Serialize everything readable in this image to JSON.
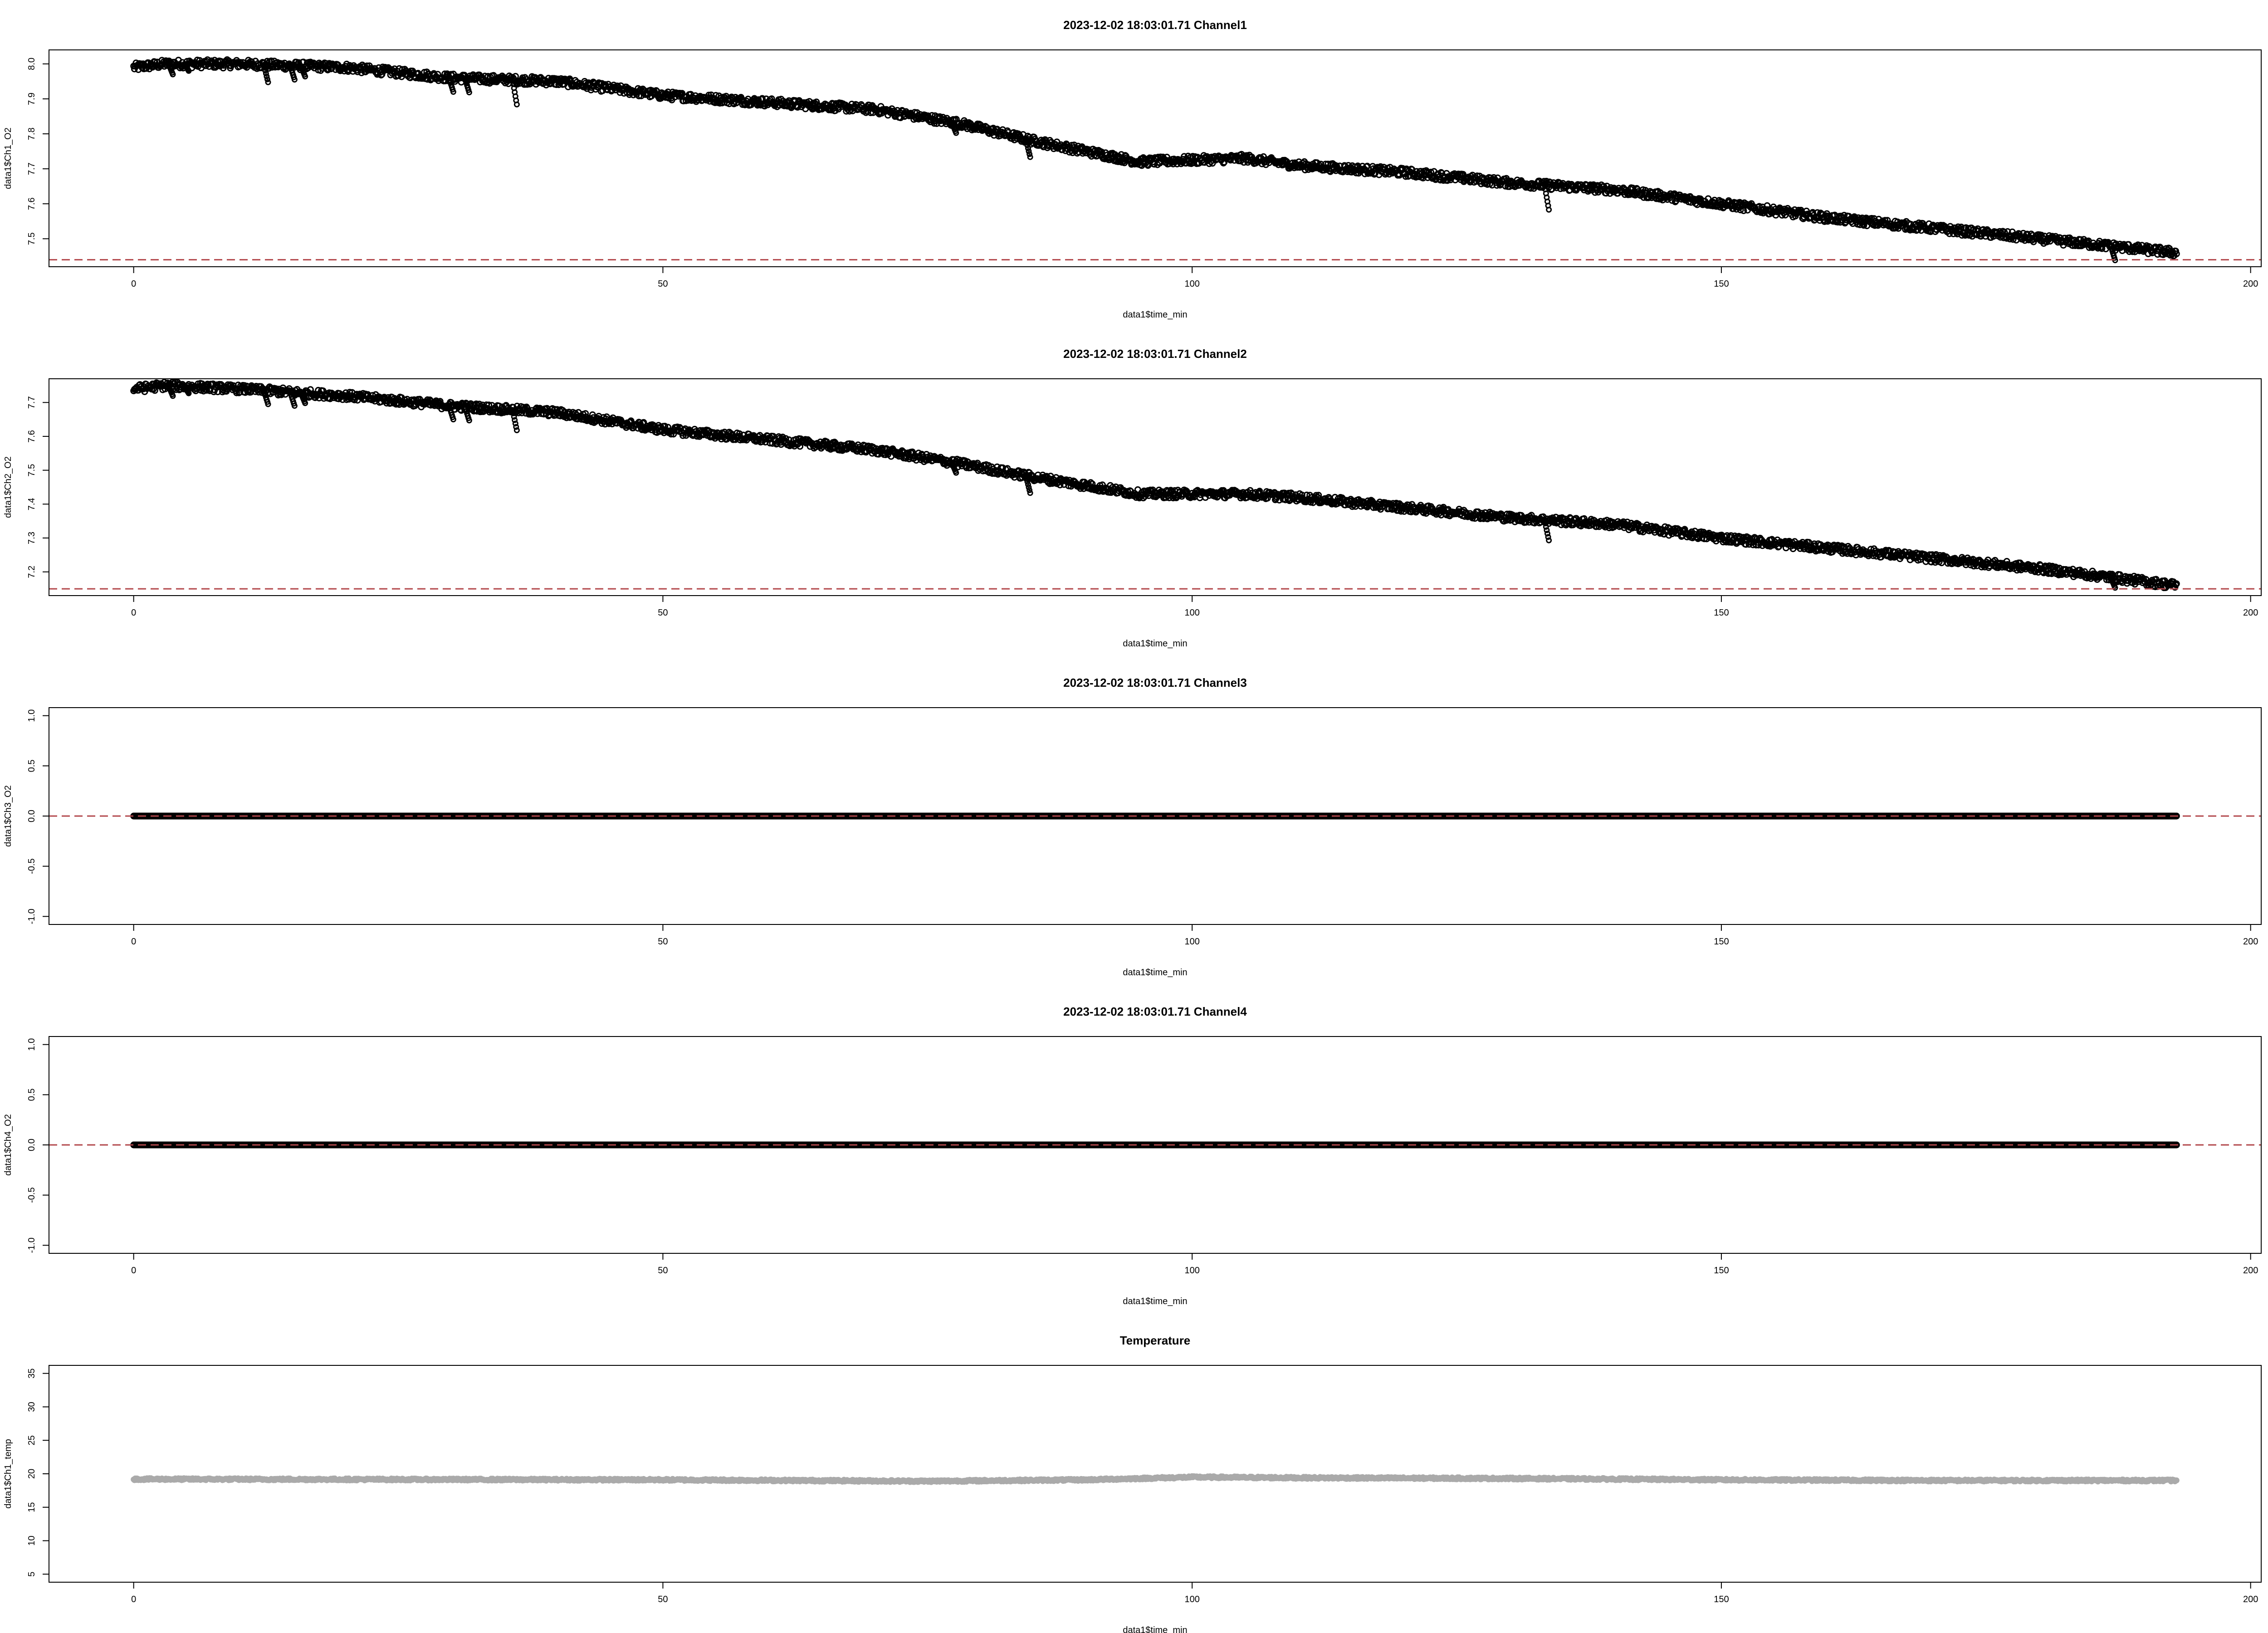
{
  "chart_data": [
    {
      "type": "scatter",
      "title": "2023-12-02 18:03:01.71 Channel1",
      "xlabel": "data1$time_min",
      "ylabel": "data1$Ch1_O2",
      "xlim": [
        -8,
        201
      ],
      "ylim": [
        7.42,
        8.04
      ],
      "xticks": [
        0,
        50,
        100,
        150,
        200
      ],
      "yticks": [
        7.5,
        7.6,
        7.7,
        7.8,
        7.9,
        8.0
      ],
      "ytick_labels": [
        "7.5",
        "7.6",
        "7.7",
        "7.8",
        "7.9",
        "8.0"
      ],
      "series_color": "#000000",
      "hline": {
        "y": 7.44,
        "color": "#b2474b",
        "style": "dashed"
      },
      "trend": {
        "x": [
          0,
          3,
          10,
          20,
          30,
          40,
          50,
          60,
          70,
          78,
          85,
          95,
          105,
          110,
          120,
          130,
          135,
          140,
          150,
          160,
          170,
          180,
          193
        ],
        "y": [
          7.99,
          8.0,
          8.0,
          7.99,
          7.96,
          7.95,
          7.91,
          7.89,
          7.87,
          7.83,
          7.78,
          7.72,
          7.73,
          7.71,
          7.69,
          7.66,
          7.65,
          7.64,
          7.6,
          7.56,
          7.53,
          7.5,
          7.46
        ]
      },
      "spread": 0.012,
      "dips": [
        {
          "x": 3.5,
          "d": 0.03
        },
        {
          "x": 5,
          "d": 0.02
        },
        {
          "x": 12.5,
          "d": 0.05
        },
        {
          "x": 15,
          "d": 0.04
        },
        {
          "x": 16,
          "d": 0.03
        },
        {
          "x": 30,
          "d": 0.04
        },
        {
          "x": 31.5,
          "d": 0.04
        },
        {
          "x": 36,
          "d": 0.07
        },
        {
          "x": 77.5,
          "d": 0.03
        },
        {
          "x": 84.5,
          "d": 0.05
        },
        {
          "x": 133.5,
          "d": 0.07
        },
        {
          "x": 187,
          "d": 0.04
        }
      ]
    },
    {
      "type": "scatter",
      "title": "2023-12-02 18:03:01.71 Channel2",
      "xlabel": "data1$time_min",
      "ylabel": "data1$Ch2_O2",
      "xlim": [
        -8,
        201
      ],
      "ylim": [
        7.13,
        7.77
      ],
      "xticks": [
        0,
        50,
        100,
        150,
        200
      ],
      "yticks": [
        7.2,
        7.3,
        7.4,
        7.5,
        7.6,
        7.7
      ],
      "ytick_labels": [
        "7.2",
        "7.3",
        "7.4",
        "7.5",
        "7.6",
        "7.7"
      ],
      "series_color": "#000000",
      "hline": {
        "y": 7.15,
        "color": "#b2474b",
        "style": "dashed"
      },
      "trend": {
        "x": [
          0,
          3,
          10,
          20,
          30,
          40,
          50,
          60,
          70,
          78,
          85,
          95,
          105,
          110,
          120,
          130,
          135,
          140,
          150,
          160,
          170,
          180,
          193
        ],
        "y": [
          7.74,
          7.75,
          7.74,
          7.72,
          7.69,
          7.67,
          7.62,
          7.59,
          7.56,
          7.52,
          7.48,
          7.43,
          7.43,
          7.42,
          7.39,
          7.36,
          7.35,
          7.34,
          7.3,
          7.27,
          7.24,
          7.21,
          7.16
        ]
      },
      "spread": 0.012,
      "dips": [
        {
          "x": 3.5,
          "d": 0.03
        },
        {
          "x": 5,
          "d": 0.02
        },
        {
          "x": 12.5,
          "d": 0.04
        },
        {
          "x": 15,
          "d": 0.04
        },
        {
          "x": 16,
          "d": 0.03
        },
        {
          "x": 30,
          "d": 0.04
        },
        {
          "x": 31.5,
          "d": 0.04
        },
        {
          "x": 36,
          "d": 0.06
        },
        {
          "x": 77.5,
          "d": 0.03
        },
        {
          "x": 84.5,
          "d": 0.05
        },
        {
          "x": 133.5,
          "d": 0.06
        },
        {
          "x": 187,
          "d": 0.03
        }
      ]
    },
    {
      "type": "scatter",
      "title": "2023-12-02 18:03:01.71 Channel3",
      "xlabel": "data1$time_min",
      "ylabel": "data1$Ch3_O2",
      "xlim": [
        -8,
        201
      ],
      "ylim": [
        -1.08,
        1.08
      ],
      "xticks": [
        0,
        50,
        100,
        150,
        200
      ],
      "yticks": [
        -1.0,
        -0.5,
        0.0,
        0.5,
        1.0
      ],
      "ytick_labels": [
        "-1.0",
        "-0.5",
        "0.0",
        "0.5",
        "1.0"
      ],
      "series_color": "#000000",
      "hline": {
        "y": 0,
        "color": "#b2474b",
        "style": "dashed"
      },
      "trend": {
        "x": [
          0,
          193
        ],
        "y": [
          0,
          0
        ]
      },
      "spread": 0,
      "dips": []
    },
    {
      "type": "scatter",
      "title": "2023-12-02 18:03:01.71 Channel4",
      "xlabel": "data1$time_min",
      "ylabel": "data1$Ch4_O2",
      "xlim": [
        -8,
        201
      ],
      "ylim": [
        -1.08,
        1.08
      ],
      "xticks": [
        0,
        50,
        100,
        150,
        200
      ],
      "yticks": [
        -1.0,
        -0.5,
        0.0,
        0.5,
        1.0
      ],
      "ytick_labels": [
        "-1.0",
        "-0.5",
        "0.0",
        "0.5",
        "1.0"
      ],
      "series_color": "#000000",
      "hline": {
        "y": 0,
        "color": "#b2474b",
        "style": "dashed"
      },
      "trend": {
        "x": [
          0,
          193
        ],
        "y": [
          0,
          0
        ]
      },
      "spread": 0,
      "dips": []
    },
    {
      "type": "line",
      "title": "Temperature",
      "xlabel": "data1$time_min",
      "ylabel": "data1$Ch1_temp",
      "xlim": [
        -8,
        201
      ],
      "ylim": [
        3.8,
        36.2
      ],
      "xticks": [
        0,
        50,
        100,
        150,
        200
      ],
      "yticks": [
        5,
        10,
        15,
        20,
        25,
        30,
        35
      ],
      "ytick_labels": [
        "5",
        "10",
        "15",
        "20",
        "25",
        "30",
        "35"
      ],
      "series_color": "#aaaaaa",
      "hline": null,
      "trend": {
        "x": [
          0,
          50,
          75,
          90,
          100,
          110,
          130,
          150,
          170,
          193
        ],
        "y": [
          19.2,
          19.1,
          18.9,
          19.1,
          19.5,
          19.4,
          19.3,
          19.1,
          19.0,
          19.0
        ]
      },
      "spread": 0.15,
      "dips": []
    }
  ]
}
